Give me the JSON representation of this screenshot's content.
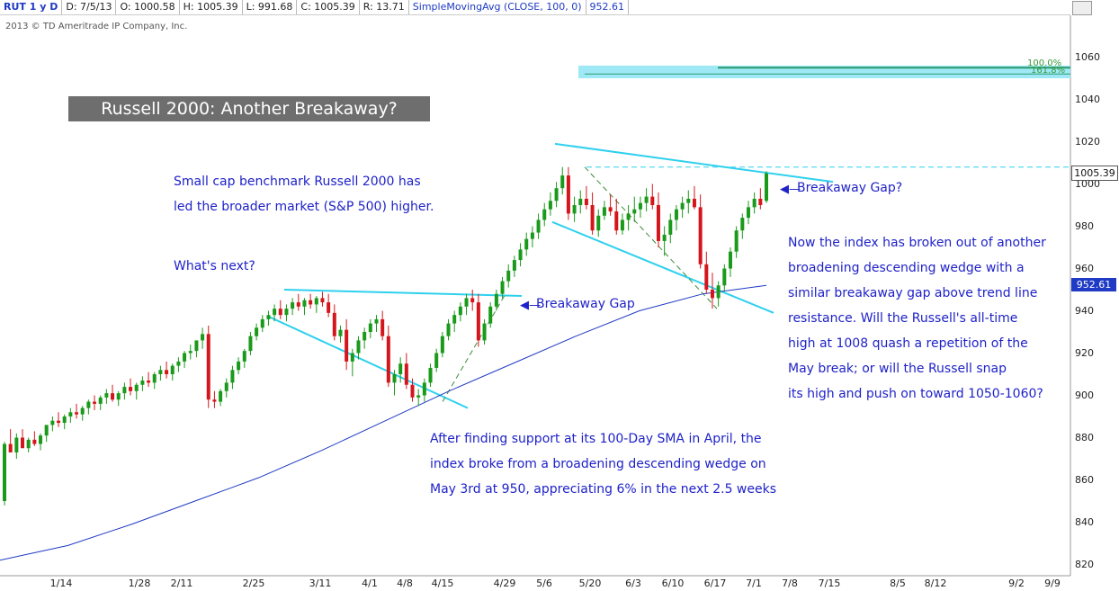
{
  "header": {
    "symbol": "RUT 1 y D",
    "date": "D: 7/5/13",
    "open": "O: 1000.58",
    "high": "H: 1005.39",
    "low": "L: 991.68",
    "close": "C: 1005.39",
    "range": "R: 13.71",
    "sma_label": "SimpleMovingAvg (CLOSE, 100, 0)",
    "sma_value": "952.61"
  },
  "copyright": "2013 © TD Ameritrade IP Company, Inc.",
  "title": "Russell 2000: Another Breakaway?",
  "notes": {
    "n1": [
      "Small cap benchmark Russell 2000 has",
      "led the broader market (S&P 500) higher."
    ],
    "n2": "What's next?",
    "n3": [
      "Now the index has broken out of another",
      "broadening descending wedge with a",
      "similar breakaway gap above trend line",
      "resistance.  Will the Russell's all-time",
      "high at 1008 quash a repetition of the",
      "May break; or will the Russell snap",
      "its high and push on toward 1050-1060?"
    ],
    "n4": [
      "After finding support at its 100-Day SMA in April, the",
      "index broke from a broadening descending wedge on",
      "May 3rd at 950, appreciating 6% in the next 2.5 weeks"
    ]
  },
  "gap_labels": {
    "g1": "Breakaway Gap",
    "g2": "Breakaway Gap?"
  },
  "fib": {
    "f1": "100.0%",
    "f2": "161.8%"
  },
  "price_label": "1005.39",
  "sma_label_value": "952.61",
  "colors": {
    "up": "#1a9a1a",
    "down": "#d4161c",
    "sma": "#1f3ac4",
    "trend": "#2fd0ee",
    "annot": "#1f22c8",
    "dashed_green": "#3a8a3a"
  },
  "chart_data": {
    "type": "candlestick",
    "title": "Russell 2000: Another Breakaway?",
    "xlabel": "",
    "ylabel": "",
    "ylim": [
      815,
      1075
    ],
    "yticks": [
      820,
      840,
      860,
      880,
      900,
      920,
      940,
      960,
      980,
      1000,
      1020,
      1040,
      1060
    ],
    "xticks": [
      "1/14",
      "1/28",
      "2/11",
      "2/25",
      "3/11",
      "4/1",
      "4/8",
      "4/15",
      "4/29",
      "5/6",
      "5/20",
      "6/3",
      "6/10",
      "6/17",
      "7/1",
      "7/8",
      "7/15",
      "8/5",
      "8/12",
      "9/2",
      "9/9"
    ],
    "candles": [
      [
        850,
        878,
        848,
        877
      ],
      [
        877,
        884,
        873,
        873
      ],
      [
        873,
        882,
        870,
        880
      ],
      [
        880,
        884,
        876,
        875
      ],
      [
        875,
        880,
        873,
        879
      ],
      [
        879,
        883,
        876,
        877
      ],
      [
        877,
        882,
        874,
        881
      ],
      [
        881,
        886,
        878,
        886
      ],
      [
        886,
        890,
        883,
        888
      ],
      [
        888,
        892,
        885,
        887
      ],
      [
        887,
        891,
        884,
        890
      ],
      [
        890,
        894,
        887,
        892
      ],
      [
        892,
        896,
        889,
        891
      ],
      [
        891,
        895,
        888,
        894
      ],
      [
        894,
        898,
        891,
        897
      ],
      [
        897,
        900,
        893,
        896
      ],
      [
        896,
        900,
        893,
        899
      ],
      [
        899,
        903,
        896,
        901
      ],
      [
        901,
        905,
        897,
        898
      ],
      [
        898,
        902,
        895,
        901
      ],
      [
        901,
        906,
        898,
        904
      ],
      [
        904,
        908,
        900,
        902
      ],
      [
        902,
        906,
        898,
        905
      ],
      [
        905,
        909,
        902,
        907
      ],
      [
        907,
        911,
        904,
        906
      ],
      [
        906,
        911,
        903,
        910
      ],
      [
        910,
        914,
        907,
        912
      ],
      [
        912,
        916,
        908,
        910
      ],
      [
        910,
        915,
        907,
        914
      ],
      [
        914,
        918,
        911,
        916
      ],
      [
        916,
        921,
        913,
        920
      ],
      [
        920,
        924,
        917,
        921
      ],
      [
        921,
        925,
        918,
        926
      ],
      [
        926,
        932,
        922,
        929
      ],
      [
        929,
        933,
        894,
        898
      ],
      [
        898,
        902,
        894,
        897
      ],
      [
        897,
        903,
        895,
        902
      ],
      [
        902,
        908,
        899,
        906
      ],
      [
        906,
        914,
        903,
        912
      ],
      [
        912,
        918,
        910,
        916
      ],
      [
        916,
        922,
        913,
        921
      ],
      [
        921,
        930,
        919,
        928
      ],
      [
        928,
        934,
        926,
        932
      ],
      [
        932,
        938,
        930,
        936
      ],
      [
        936,
        940,
        933,
        938
      ],
      [
        938,
        943,
        935,
        941
      ],
      [
        941,
        945,
        936,
        938
      ],
      [
        938,
        943,
        935,
        941
      ],
      [
        941,
        946,
        938,
        944
      ],
      [
        944,
        948,
        940,
        942
      ],
      [
        942,
        946,
        938,
        945
      ],
      [
        945,
        948,
        941,
        943
      ],
      [
        943,
        947,
        939,
        946
      ],
      [
        946,
        949,
        942,
        944
      ],
      [
        944,
        948,
        937,
        939
      ],
      [
        939,
        943,
        926,
        928
      ],
      [
        928,
        933,
        925,
        931
      ],
      [
        931,
        936,
        912,
        916
      ],
      [
        916,
        922,
        909,
        920
      ],
      [
        920,
        928,
        917,
        926
      ],
      [
        926,
        932,
        922,
        930
      ],
      [
        930,
        936,
        927,
        934
      ],
      [
        934,
        938,
        930,
        936
      ],
      [
        936,
        940,
        926,
        928
      ],
      [
        928,
        933,
        904,
        906
      ],
      [
        906,
        912,
        900,
        910
      ],
      [
        910,
        918,
        906,
        915
      ],
      [
        915,
        920,
        903,
        905
      ],
      [
        905,
        908,
        897,
        899
      ],
      [
        899,
        903,
        895,
        900
      ],
      [
        900,
        908,
        897,
        906
      ],
      [
        906,
        915,
        904,
        913
      ],
      [
        913,
        922,
        911,
        920
      ],
      [
        920,
        930,
        918,
        928
      ],
      [
        928,
        936,
        926,
        934
      ],
      [
        934,
        940,
        930,
        938
      ],
      [
        938,
        944,
        935,
        942
      ],
      [
        942,
        948,
        938,
        946
      ],
      [
        946,
        950,
        940,
        944
      ],
      [
        944,
        948,
        923,
        926
      ],
      [
        926,
        936,
        924,
        934
      ],
      [
        934,
        944,
        932,
        942
      ],
      [
        942,
        950,
        940,
        948
      ],
      [
        948,
        956,
        946,
        954
      ],
      [
        954,
        962,
        951,
        959
      ],
      [
        959,
        966,
        956,
        964
      ],
      [
        964,
        972,
        961,
        969
      ],
      [
        969,
        977,
        966,
        974
      ],
      [
        974,
        980,
        970,
        977
      ],
      [
        977,
        986,
        974,
        983
      ],
      [
        983,
        991,
        980,
        988
      ],
      [
        988,
        996,
        985,
        992
      ],
      [
        992,
        1001,
        989,
        998
      ],
      [
        998,
        1008,
        995,
        1004
      ],
      [
        1004,
        1008,
        983,
        986
      ],
      [
        986,
        994,
        982,
        990
      ],
      [
        990,
        997,
        986,
        993
      ],
      [
        993,
        999,
        988,
        990
      ],
      [
        990,
        996,
        976,
        978
      ],
      [
        978,
        988,
        975,
        985
      ],
      [
        985,
        992,
        983,
        989
      ],
      [
        989,
        995,
        985,
        987
      ],
      [
        987,
        993,
        976,
        978
      ],
      [
        978,
        986,
        976,
        983
      ],
      [
        983,
        990,
        978,
        986
      ],
      [
        986,
        994,
        982,
        988
      ],
      [
        988,
        994,
        984,
        991
      ],
      [
        991,
        998,
        987,
        994
      ],
      [
        994,
        1000,
        988,
        990
      ],
      [
        990,
        996,
        970,
        973
      ],
      [
        973,
        980,
        966,
        976
      ],
      [
        976,
        986,
        972,
        983
      ],
      [
        983,
        990,
        978,
        988
      ],
      [
        988,
        994,
        984,
        991
      ],
      [
        991,
        997,
        986,
        993
      ],
      [
        993,
        999,
        988,
        989
      ],
      [
        989,
        995,
        960,
        962
      ],
      [
        962,
        968,
        948,
        950
      ],
      [
        950,
        958,
        941,
        946
      ],
      [
        946,
        954,
        942,
        952
      ],
      [
        952,
        962,
        949,
        960
      ],
      [
        960,
        970,
        956,
        968
      ],
      [
        968,
        980,
        965,
        978
      ],
      [
        978,
        986,
        974,
        984
      ],
      [
        984,
        992,
        981,
        989
      ],
      [
        989,
        996,
        986,
        993
      ],
      [
        993,
        998,
        988,
        990
      ],
      [
        992,
        1006,
        991,
        1005
      ]
    ],
    "sma100": [
      [
        0,
        822
      ],
      [
        20,
        829
      ],
      [
        40,
        839
      ],
      [
        60,
        850
      ],
      [
        80,
        861
      ],
      [
        100,
        874
      ],
      [
        120,
        888
      ],
      [
        140,
        902
      ],
      [
        160,
        915
      ],
      [
        180,
        928
      ],
      [
        200,
        940
      ],
      [
        220,
        948
      ],
      [
        240,
        952
      ]
    ]
  }
}
